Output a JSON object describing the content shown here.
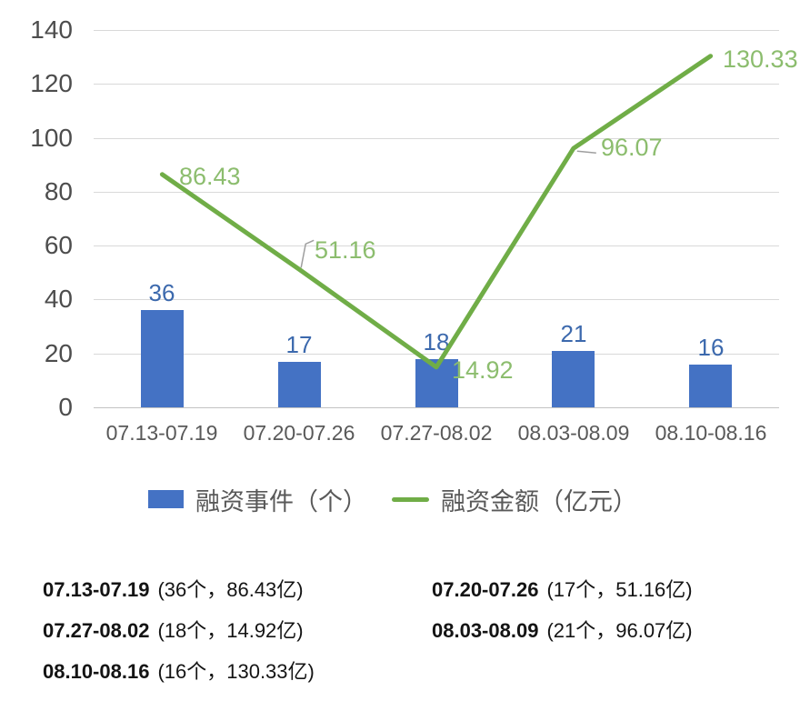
{
  "colors": {
    "bar": "#4472c4",
    "bar_label": "#3c69ad",
    "line": "#70ad47",
    "line_label": "#8cbd6e",
    "axis_text": "#595959",
    "gridline": "#d9d9d9",
    "leader_line": "#9e9e9e",
    "summary_text": "#141414",
    "background": "#ffffff"
  },
  "chart_data": {
    "type": "combo-bar-line",
    "categories": [
      "07.13-07.19",
      "07.20-07.26",
      "07.27-08.02",
      "08.03-08.09",
      "08.10-08.16"
    ],
    "series": [
      {
        "name": "融资事件（个）",
        "type": "bar",
        "values": [
          36,
          17,
          18,
          21,
          16
        ]
      },
      {
        "name": "融资金额（亿元）",
        "type": "line",
        "values": [
          86.43,
          51.16,
          14.92,
          96.07,
          130.33
        ]
      }
    ],
    "bar_value_labels": [
      "36",
      "17",
      "18",
      "21",
      "16"
    ],
    "line_value_labels": [
      "86.43",
      "51.16",
      "14.92",
      "96.07",
      "130.33"
    ],
    "title": "",
    "xlabel": "",
    "ylabel": "",
    "ylim": [
      0,
      140
    ],
    "yticks": [
      0,
      20,
      40,
      60,
      80,
      100,
      120,
      140
    ],
    "grid": true,
    "legend_position": "bottom"
  },
  "legend": {
    "bar_label": "融资事件（个）",
    "line_label": "融资金额（亿元）"
  },
  "summary": {
    "rows": [
      {
        "date": "07.13-07.19",
        "detail": "(36个，86.43亿)"
      },
      {
        "date": "07.20-07.26",
        "detail": "(17个，51.16亿)"
      },
      {
        "date": "07.27-08.02",
        "detail": "(18个，14.92亿)"
      },
      {
        "date": "08.03-08.09",
        "detail": "(21个，96.07亿)"
      },
      {
        "date": "08.10-08.16",
        "detail": "(16个，130.33亿)"
      }
    ]
  }
}
